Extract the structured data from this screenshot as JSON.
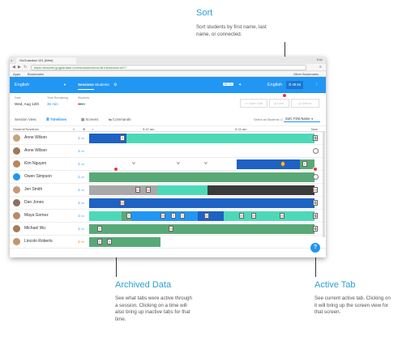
{
  "annotations": {
    "sort": {
      "title": "Sort",
      "body": [
        "Sort students by first name, last",
        "name, or connected."
      ]
    },
    "archived": {
      "title": "Archived Data",
      "body": [
        "See what tabs were active through",
        "a session. Clicking on a time will",
        "also bring up inactive tabs for that",
        "time."
      ]
    },
    "active": {
      "title": "Active Tab",
      "body": [
        "See current active tab. Clicking on",
        "it will bring up the screen view for",
        "that screen."
      ]
    }
  },
  "browser": {
    "tab_title": "GoGuardian 101 (Web)",
    "user": "Eric",
    "url": "https://teacher.goguardian.com/#/classrooms/461/sessions/1877",
    "bookmarks": {
      "apps": "Apps",
      "bookmarks": "Bookmarks",
      "other": "Other Bookmarks"
    }
  },
  "app": {
    "class_name": "English",
    "nav_sessions": "Sessions",
    "nav_students": "Students",
    "beta": "BETA",
    "class_name_right": "English",
    "timer": "09:46"
  },
  "session": {
    "date_label": "Date",
    "date_value": "Wed, Aug 12th",
    "time_label": "Time Remaining",
    "time_value": "35 min",
    "students_label": "Students",
    "open_tab": "Open Tab",
    "lock": "Lock",
    "unlock": "Unlock"
  },
  "views": {
    "label": "Session View:",
    "timelines": "Timelines",
    "screens": "Screens",
    "commands": "Commands",
    "select_all": "Select all Students",
    "sort": "Sort: First Name"
  },
  "timeline": {
    "students_header": "Student/Timelines",
    "t1": "9:22 am",
    "t2": "9:24 am",
    "now": "Now"
  },
  "students": [
    {
      "name": "Anne Wilson",
      "count": "1"
    },
    {
      "name": "Anne Wilson",
      "count": "1"
    },
    {
      "name": "Kim Nguyen",
      "count": "1"
    },
    {
      "name": "Owen Simpson",
      "count": "1"
    },
    {
      "name": "Jen Smith",
      "count": "1"
    },
    {
      "name": "Dan Jones",
      "count": "1"
    },
    {
      "name": "Maya Gomez",
      "count": "1"
    },
    {
      "name": "Michael Wu",
      "count": "1"
    },
    {
      "name": "Lincoln Roberts",
      "count": "1"
    }
  ],
  "colors": {
    "accent": "#2196f3",
    "annotation": "#2a9fd6",
    "teal": "#4dd9b8",
    "green": "#59a978",
    "blue": "#1e62c4",
    "gray": "#a8a8a8",
    "dark": "#3a3a3a",
    "red_dot": "#e53935"
  }
}
